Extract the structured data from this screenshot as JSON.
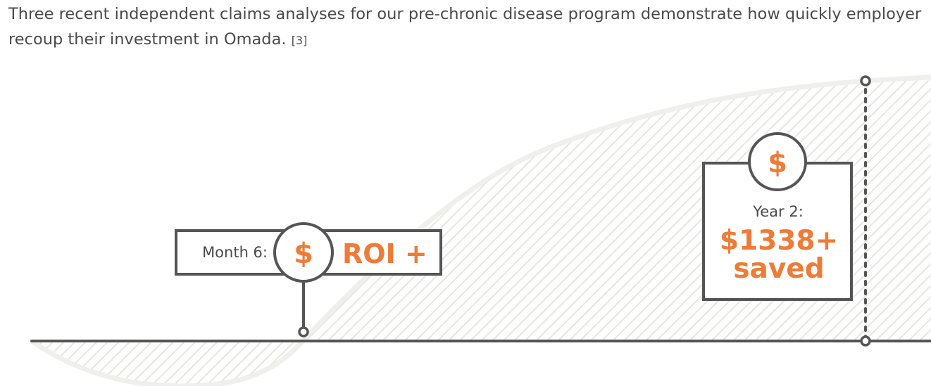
{
  "intro": {
    "line1": "Three recent independent claims analyses for our pre-chronic disease program demonstrate how quickly employer",
    "line2": "recoup their investment in Omada.",
    "citation": "[3]"
  },
  "callouts": {
    "month6": {
      "label": "Month 6:",
      "icon_glyph": "$",
      "value": "ROI +"
    },
    "year2": {
      "icon_glyph": "$",
      "label": "Year 2:",
      "amount": "$1338+",
      "suffix": "saved"
    }
  },
  "colors": {
    "accent": "#ef7b36",
    "line": "#555555",
    "text": "#4a4a4a",
    "hatch": "#e6e6e2"
  },
  "icons": [
    "dollar-icon",
    "dollar-icon"
  ]
}
